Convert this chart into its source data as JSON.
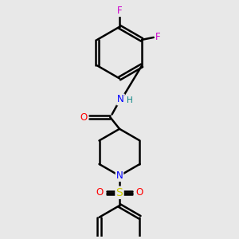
{
  "bg_color": "#e8e8e8",
  "bond_color": "#000000",
  "bond_width": 1.8,
  "atom_colors": {
    "F": "#cc00cc",
    "O": "#ff0000",
    "N": "#0000ff",
    "S": "#cccc00",
    "H": "#008080",
    "C": "#000000"
  },
  "font_size": 8.5,
  "fig_width": 3.0,
  "fig_height": 3.0,
  "dpi": 100,
  "xlim": [
    0,
    10
  ],
  "ylim": [
    0,
    10
  ]
}
